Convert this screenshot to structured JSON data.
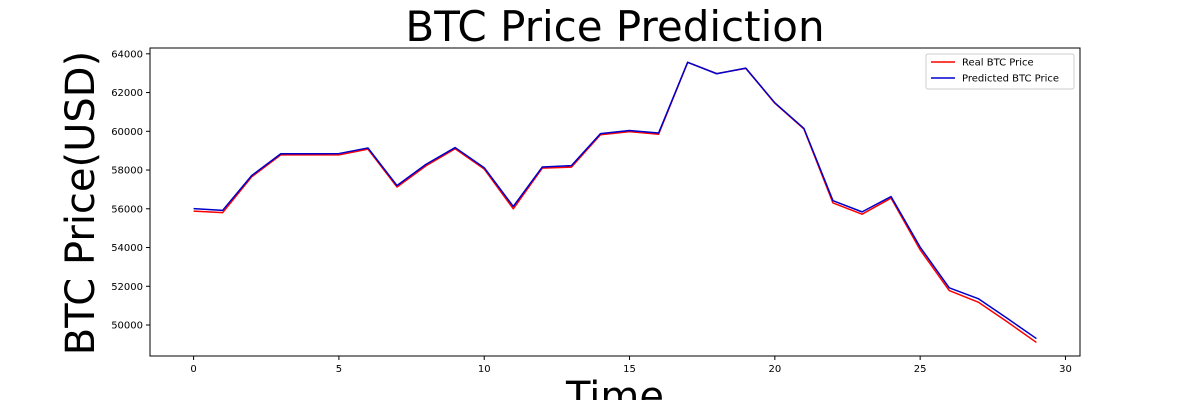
{
  "chart_data": {
    "type": "line",
    "title": "BTC Price Prediction",
    "xlabel": "Time",
    "ylabel": "BTC Price(USD)",
    "xlim": [
      -1.5,
      30.5
    ],
    "ylim": [
      48400,
      64300
    ],
    "xticks": [
      0,
      5,
      10,
      15,
      20,
      25,
      30
    ],
    "yticks": [
      50000,
      52000,
      54000,
      56000,
      58000,
      60000,
      62000,
      64000
    ],
    "grid": false,
    "legend_position": "top-right",
    "x": [
      0,
      1,
      2,
      3,
      4,
      5,
      6,
      7,
      8,
      9,
      10,
      11,
      12,
      13,
      14,
      15,
      16,
      17,
      18,
      19,
      20,
      21,
      22,
      23,
      24,
      25,
      26,
      27,
      28,
      29
    ],
    "series": [
      {
        "name": "Real BTC Price",
        "color": "#ff0000",
        "values": [
          55880,
          55800,
          57650,
          58780,
          58780,
          58780,
          59080,
          57120,
          58220,
          59100,
          58050,
          56000,
          58100,
          58150,
          59820,
          59980,
          59850,
          63560,
          62980,
          63250,
          61450,
          60120,
          56300,
          55720,
          56550,
          53880,
          51780,
          51180,
          50160,
          49100
        ]
      },
      {
        "name": "Predicted BTC Price",
        "color": "#0000cc",
        "values": [
          56010,
          55920,
          57720,
          58840,
          58840,
          58850,
          59140,
          57200,
          58300,
          59160,
          58120,
          56120,
          58160,
          58230,
          59880,
          60040,
          59910,
          63560,
          62970,
          63260,
          61470,
          60150,
          56420,
          55840,
          56630,
          54020,
          51920,
          51360,
          50340,
          49300
        ]
      }
    ]
  }
}
